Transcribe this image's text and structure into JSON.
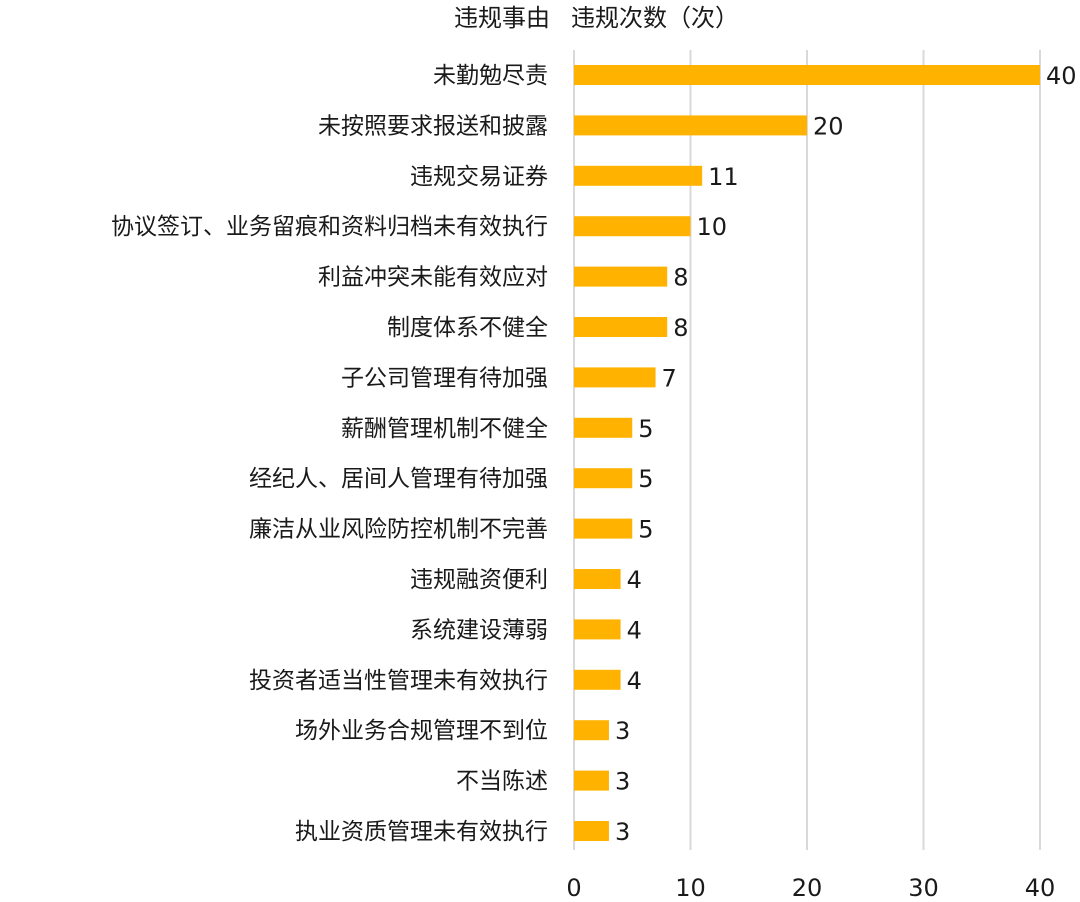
{
  "chart_data": {
    "type": "bar",
    "orientation": "horizontal",
    "column_header_category": "违规事由",
    "column_header_value": "违规次数（次）",
    "categories": [
      "未勤勉尽责",
      "未按照要求报送和披露",
      "违规交易证券",
      "协议签订、业务留痕和资料归档未有效执行",
      "利益冲突未能有效应对",
      "制度体系不健全",
      "子公司管理有待加强",
      "薪酬管理机制不健全",
      "经纪人、居间人管理有待加强",
      "廉洁从业风险防控机制不完善",
      "违规融资便利",
      "系统建设薄弱",
      "投资者适当性管理未有效执行",
      "场外业务合规管理不到位",
      "不当陈述",
      "执业资质管理未有效执行"
    ],
    "values": [
      40,
      20,
      11,
      10,
      8,
      8,
      7,
      5,
      5,
      5,
      4,
      4,
      4,
      3,
      3,
      3
    ],
    "x_ticks": [
      "0",
      "10",
      "20",
      "30",
      "40"
    ],
    "xlim": [
      0,
      40
    ],
    "grid": true,
    "bar_color": "#FFB300",
    "grid_color": "#d9d9d9"
  }
}
